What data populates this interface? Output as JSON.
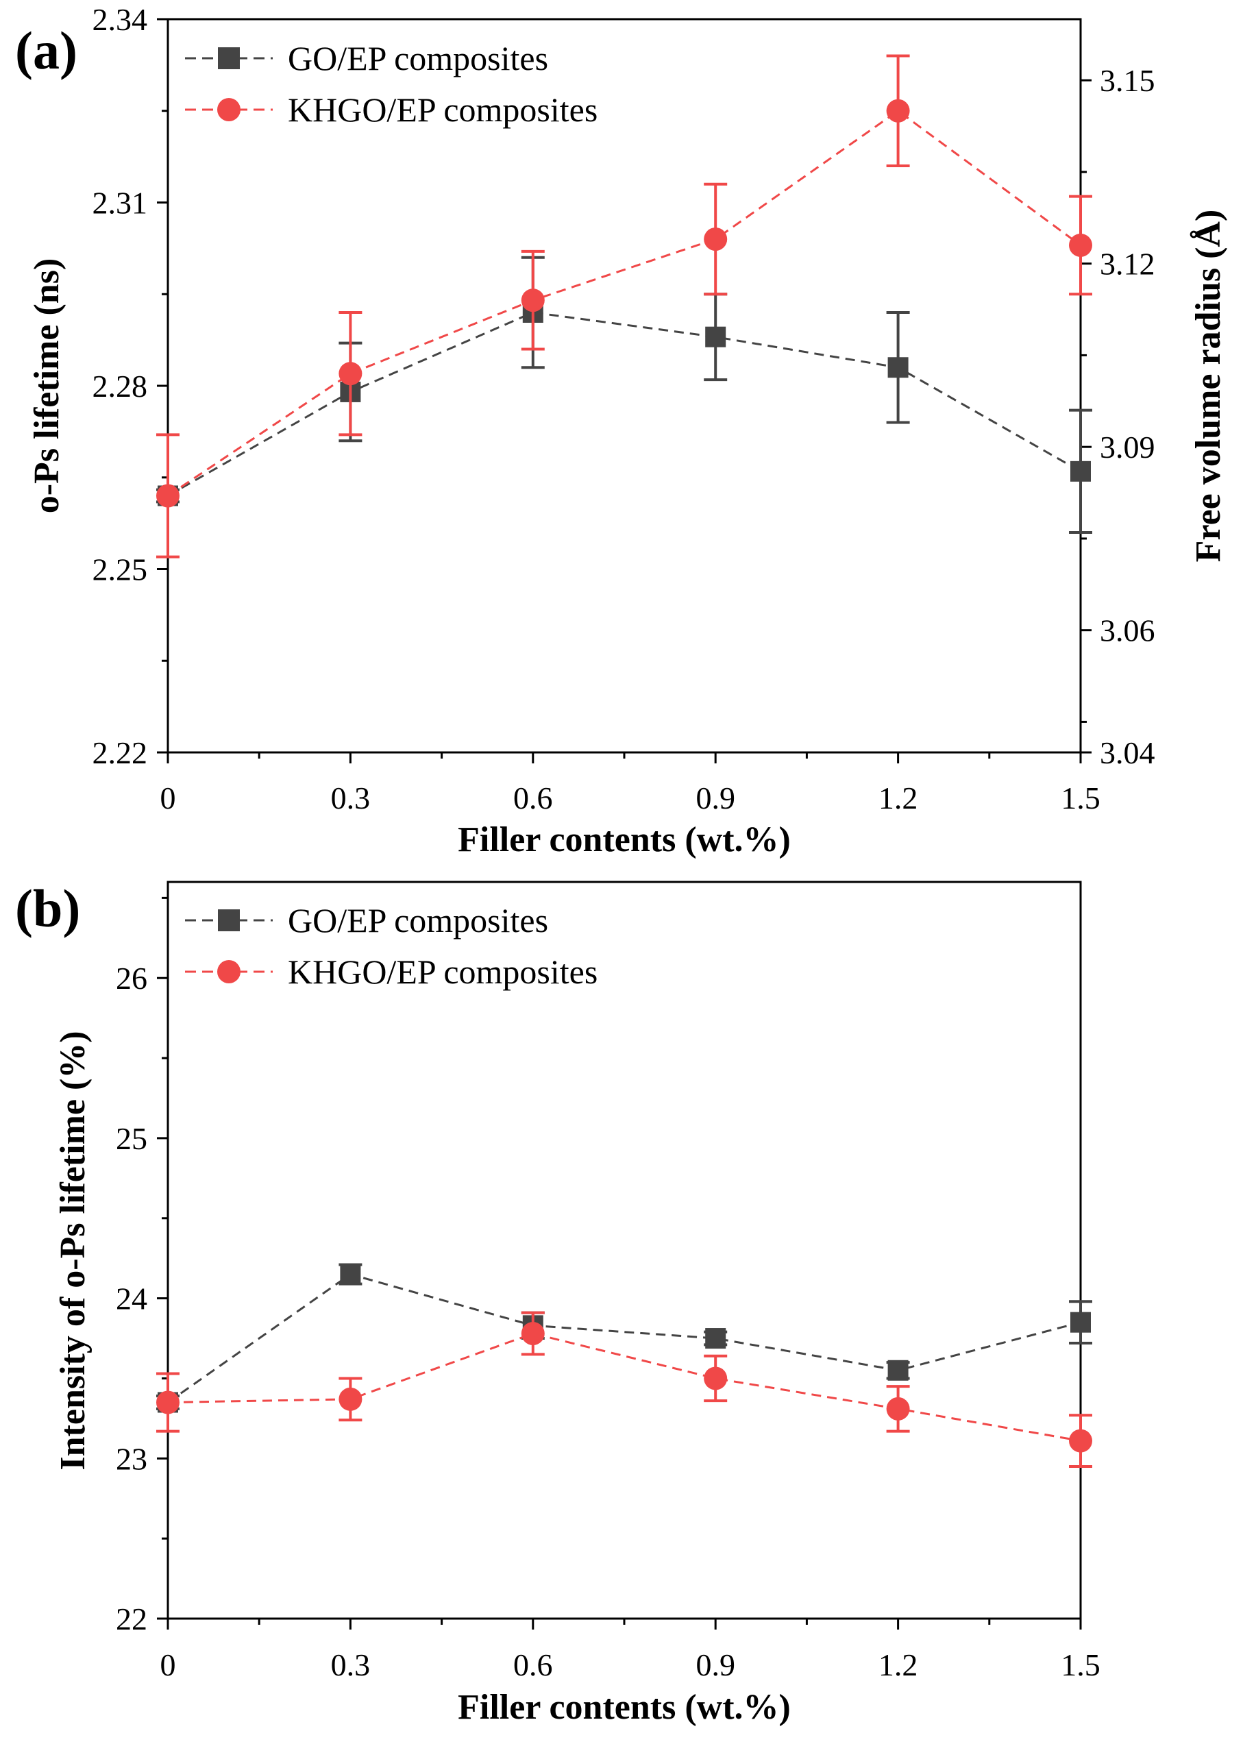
{
  "chart_data": [
    {
      "type": "line",
      "panel_label": "(a)",
      "xlabel": "Filler contents (wt.%)",
      "ylabel": "o-Ps lifetime (ns)",
      "y2label": "Free volume radius (Å)",
      "x": [
        0,
        0.3,
        0.6,
        0.9,
        1.2,
        1.5
      ],
      "x_tick_labels": [
        "0",
        "0.3",
        "0.6",
        "0.9",
        "1.2",
        "1.5"
      ],
      "xlim": [
        0,
        1.5
      ],
      "ylim": [
        2.22,
        2.34
      ],
      "y_ticks": [
        2.22,
        2.25,
        2.28,
        2.31,
        2.34
      ],
      "y_tick_labels": [
        "2.22",
        "2.25",
        "2.28",
        "2.31",
        "2.34"
      ],
      "y2lim": [
        3.04,
        3.16
      ],
      "y2_ticks": [
        3.04,
        3.06,
        3.09,
        3.12,
        3.15
      ],
      "y2_tick_labels": [
        "3.04",
        "3.06",
        "3.09",
        "3.12",
        "3.15"
      ],
      "legend_position": "top-left",
      "series": [
        {
          "name": "GO/EP composites",
          "marker": "square",
          "color": "#444444",
          "values": [
            2.262,
            2.279,
            2.292,
            2.288,
            2.283,
            2.266
          ],
          "errors": [
            0.001,
            0.008,
            0.009,
            0.007,
            0.009,
            0.01
          ]
        },
        {
          "name": "KHGO/EP composites",
          "marker": "circle",
          "color": "#f04848",
          "values": [
            2.262,
            2.282,
            2.294,
            2.304,
            2.325,
            2.303
          ],
          "errors": [
            0.01,
            0.01,
            0.008,
            0.009,
            0.009,
            0.008
          ]
        }
      ]
    },
    {
      "type": "line",
      "panel_label": "(b)",
      "xlabel": "Filler contents (wt.%)",
      "ylabel": "Intensity of o-Ps lifetime (%)",
      "x": [
        0,
        0.3,
        0.6,
        0.9,
        1.2,
        1.5
      ],
      "x_tick_labels": [
        "0",
        "0.3",
        "0.6",
        "0.9",
        "1.2",
        "1.5"
      ],
      "xlim": [
        0,
        1.5
      ],
      "ylim": [
        22,
        26.6
      ],
      "y_ticks": [
        22,
        23,
        24,
        25,
        26
      ],
      "y_tick_labels": [
        "22",
        "23",
        "24",
        "25",
        "26"
      ],
      "legend_position": "top-left",
      "series": [
        {
          "name": "GO/EP composites",
          "marker": "square",
          "color": "#444444",
          "values": [
            23.35,
            24.15,
            23.83,
            23.75,
            23.55,
            23.85
          ],
          "errors": [
            0.04,
            0.06,
            0.08,
            0.04,
            0.05,
            0.13
          ]
        },
        {
          "name": "KHGO/EP composites",
          "marker": "circle",
          "color": "#f04848",
          "values": [
            23.35,
            23.37,
            23.78,
            23.5,
            23.31,
            23.11
          ],
          "errors": [
            0.18,
            0.13,
            0.13,
            0.14,
            0.14,
            0.16
          ]
        }
      ]
    }
  ]
}
